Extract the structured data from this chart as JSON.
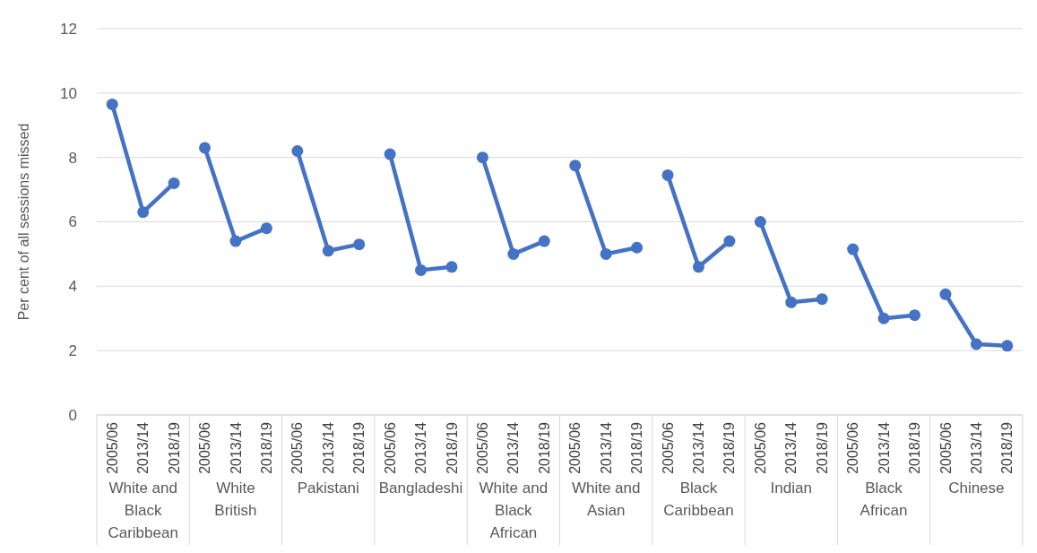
{
  "chart_data": {
    "type": "line",
    "ylabel": "Per cent of all sessions missed",
    "ylim": [
      0,
      12
    ],
    "yticks": [
      0,
      2,
      4,
      6,
      8,
      10,
      12
    ],
    "grid": "y",
    "marker": "circle",
    "annotations": [
      "White and Black Caribbean",
      "White British",
      "Pakistani",
      "Bangladeshi",
      "White and Black African",
      "White and Asian",
      "Black Caribbean",
      "Indian",
      "Black African",
      "Chinese"
    ],
    "categories": [
      "2005/06",
      "2013/14",
      "2018/19",
      "2005/06",
      "2013/14",
      "2018/19",
      "2005/06",
      "2013/14",
      "2018/19",
      "2005/06",
      "2013/14",
      "2018/19",
      "2005/06",
      "2013/14",
      "2018/19",
      "2005/06",
      "2013/14",
      "2018/19",
      "2005/06",
      "2013/14",
      "2018/19",
      "2005/06",
      "2013/14",
      "2018/19",
      "2005/06",
      "2013/14",
      "2018/19",
      "2005/06",
      "2013/14",
      "2018/19"
    ],
    "series": [
      {
        "color": "#4472c4",
        "values": [
          9.65,
          6.3,
          7.2,
          null,
          null,
          null,
          null,
          null,
          null,
          null,
          null,
          null,
          null,
          null,
          null,
          null,
          null,
          null,
          null,
          null,
          null,
          null,
          null,
          null,
          null,
          null,
          null,
          null,
          null,
          null
        ]
      },
      {
        "color": "#4472c4",
        "values": [
          null,
          null,
          null,
          8.3,
          5.4,
          5.8,
          null,
          null,
          null,
          null,
          null,
          null,
          null,
          null,
          null,
          null,
          null,
          null,
          null,
          null,
          null,
          null,
          null,
          null,
          null,
          null,
          null,
          null,
          null,
          null
        ]
      },
      {
        "color": "#4472c4",
        "values": [
          null,
          null,
          null,
          null,
          null,
          null,
          8.2,
          5.1,
          5.3,
          null,
          null,
          null,
          null,
          null,
          null,
          null,
          null,
          null,
          null,
          null,
          null,
          null,
          null,
          null,
          null,
          null,
          null,
          null,
          null,
          null
        ]
      },
      {
        "color": "#4472c4",
        "values": [
          null,
          null,
          null,
          null,
          null,
          null,
          null,
          null,
          null,
          8.1,
          4.5,
          4.6,
          null,
          null,
          null,
          null,
          null,
          null,
          null,
          null,
          null,
          null,
          null,
          null,
          null,
          null,
          null,
          null,
          null,
          null
        ]
      },
      {
        "color": "#4472c4",
        "values": [
          null,
          null,
          null,
          null,
          null,
          null,
          null,
          null,
          null,
          null,
          null,
          null,
          8.0,
          5.0,
          5.4,
          null,
          null,
          null,
          null,
          null,
          null,
          null,
          null,
          null,
          null,
          null,
          null,
          null,
          null,
          null
        ]
      },
      {
        "color": "#4472c4",
        "values": [
          null,
          null,
          null,
          null,
          null,
          null,
          null,
          null,
          null,
          null,
          null,
          null,
          null,
          null,
          null,
          7.75,
          5.0,
          5.2,
          null,
          null,
          null,
          null,
          null,
          null,
          null,
          null,
          null,
          null,
          null,
          null
        ]
      },
      {
        "color": "#4472c4",
        "values": [
          null,
          null,
          null,
          null,
          null,
          null,
          null,
          null,
          null,
          null,
          null,
          null,
          null,
          null,
          null,
          null,
          null,
          null,
          7.45,
          4.6,
          5.4,
          null,
          null,
          null,
          null,
          null,
          null,
          null,
          null,
          null
        ]
      },
      {
        "color": "#4472c4",
        "values": [
          null,
          null,
          null,
          null,
          null,
          null,
          null,
          null,
          null,
          null,
          null,
          null,
          null,
          null,
          null,
          null,
          null,
          null,
          null,
          null,
          null,
          6.0,
          3.5,
          3.6,
          null,
          null,
          null,
          null,
          null,
          null
        ]
      },
      {
        "color": "#4472c4",
        "values": [
          null,
          null,
          null,
          null,
          null,
          null,
          null,
          null,
          null,
          null,
          null,
          null,
          null,
          null,
          null,
          null,
          null,
          null,
          null,
          null,
          null,
          null,
          null,
          null,
          5.15,
          3.0,
          3.1,
          null,
          null,
          null
        ]
      },
      {
        "color": "#4472c4",
        "values": [
          null,
          null,
          null,
          null,
          null,
          null,
          null,
          null,
          null,
          null,
          null,
          null,
          null,
          null,
          null,
          null,
          null,
          null,
          null,
          null,
          null,
          null,
          null,
          null,
          null,
          null,
          null,
          3.75,
          2.2,
          2.15
        ]
      }
    ]
  }
}
